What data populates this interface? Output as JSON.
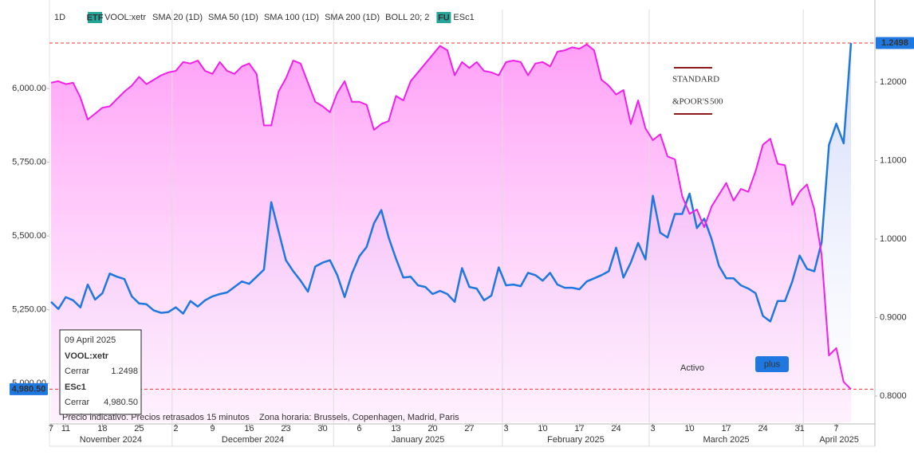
{
  "chart_data": {
    "type": "line",
    "interval": "1D",
    "indicators": [
      "SMA 20 (1D)",
      "SMA 50 (1D)",
      "SMA 100 (1D)",
      "SMA 200 (1D)",
      "BOLL 20; 2"
    ],
    "x": [
      "2024-11-07",
      "2024-11-08",
      "2024-11-11",
      "2024-11-12",
      "2024-11-13",
      "2024-11-14",
      "2024-11-15",
      "2024-11-18",
      "2024-11-19",
      "2024-11-20",
      "2024-11-21",
      "2024-11-22",
      "2024-11-25",
      "2024-11-26",
      "2024-11-27",
      "2024-11-28",
      "2024-11-29",
      "2024-12-02",
      "2024-12-03",
      "2024-12-04",
      "2024-12-05",
      "2024-12-06",
      "2024-12-09",
      "2024-12-10",
      "2024-12-11",
      "2024-12-12",
      "2024-12-13",
      "2024-12-16",
      "2024-12-17",
      "2024-12-18",
      "2024-12-19",
      "2024-12-20",
      "2024-12-23",
      "2024-12-24",
      "2024-12-25",
      "2024-12-26",
      "2024-12-27",
      "2024-12-30",
      "2024-12-31",
      "2025-01-01",
      "2025-01-02",
      "2025-01-03",
      "2025-01-06",
      "2025-01-07",
      "2025-01-08",
      "2025-01-09",
      "2025-01-10",
      "2025-01-13",
      "2025-01-14",
      "2025-01-15",
      "2025-01-16",
      "2025-01-17",
      "2025-01-20",
      "2025-01-21",
      "2025-01-22",
      "2025-01-23",
      "2025-01-24",
      "2025-01-27",
      "2025-01-28",
      "2025-01-29",
      "2025-01-30",
      "2025-01-31",
      "2025-02-03",
      "2025-02-04",
      "2025-02-05",
      "2025-02-06",
      "2025-02-07",
      "2025-02-10",
      "2025-02-11",
      "2025-02-12",
      "2025-02-13",
      "2025-02-14",
      "2025-02-17",
      "2025-02-18",
      "2025-02-19",
      "2025-02-20",
      "2025-02-21",
      "2025-02-24",
      "2025-02-25",
      "2025-02-26",
      "2025-02-27",
      "2025-02-28",
      "2025-03-03",
      "2025-03-04",
      "2025-03-05",
      "2025-03-06",
      "2025-03-07",
      "2025-03-10",
      "2025-03-11",
      "2025-03-12",
      "2025-03-13",
      "2025-03-14",
      "2025-03-17",
      "2025-03-18",
      "2025-03-19",
      "2025-03-20",
      "2025-03-21",
      "2025-03-24",
      "2025-03-25",
      "2025-03-26",
      "2025-03-27",
      "2025-03-28",
      "2025-03-31",
      "2025-04-01",
      "2025-04-02",
      "2025-04-03",
      "2025-04-04",
      "2025-04-07",
      "2025-04-08",
      "2025-04-09"
    ],
    "xticks": [
      {
        "value": "2024-11-07",
        "label": "7"
      },
      {
        "value": "2024-11-11",
        "label": "11"
      },
      {
        "value": "2024-11-18",
        "label": "18"
      },
      {
        "value": "2024-11-25",
        "label": "25"
      },
      {
        "value": "2024-12-02",
        "label": "2"
      },
      {
        "value": "2024-12-09",
        "label": "9"
      },
      {
        "value": "2024-12-16",
        "label": "16"
      },
      {
        "value": "2024-12-23",
        "label": "23"
      },
      {
        "value": "2024-12-30",
        "label": "30"
      },
      {
        "value": "2025-01-06",
        "label": "6"
      },
      {
        "value": "2025-01-13",
        "label": "13"
      },
      {
        "value": "2025-01-20",
        "label": "20"
      },
      {
        "value": "2025-01-27",
        "label": "27"
      },
      {
        "value": "2025-02-03",
        "label": "3"
      },
      {
        "value": "2025-02-10",
        "label": "10"
      },
      {
        "value": "2025-02-17",
        "label": "17"
      },
      {
        "value": "2025-02-24",
        "label": "24"
      },
      {
        "value": "2025-03-03",
        "label": "3"
      },
      {
        "value": "2025-03-10",
        "label": "10"
      },
      {
        "value": "2025-03-17",
        "label": "17"
      },
      {
        "value": "2025-03-24",
        "label": "24"
      },
      {
        "value": "2025-03-31",
        "label": "31"
      },
      {
        "value": "2025-04-07",
        "label": "7"
      }
    ],
    "month_labels": [
      "November 2024",
      "December 2024",
      "January 2025",
      "February 2025",
      "March 2025",
      "April 2025"
    ],
    "ylim": [
      4868,
      6268
    ],
    "yticks": [
      {
        "value": 6000,
        "label": "6,000.00"
      },
      {
        "value": 5750,
        "label": "5,750.00"
      },
      {
        "value": 5500,
        "label": "5,500.00"
      },
      {
        "value": 5250,
        "label": "5,250.00"
      },
      {
        "value": 5000,
        "label": "5,000.00"
      }
    ],
    "y2lim": [
      0.7665,
      1.2924
    ],
    "y2ticks": [
      {
        "value": 1.2,
        "label": "1.2000"
      },
      {
        "value": 1.1,
        "label": "1.1000"
      },
      {
        "value": 1.0,
        "label": "1.0000"
      },
      {
        "value": 0.9,
        "label": "0.9000"
      },
      {
        "value": 0.8,
        "label": "0.8000"
      }
    ],
    "grid": false,
    "series": [
      {
        "name": "VOOL:xetr",
        "badge": "ETF",
        "color": "#1f78e0",
        "axis": "y2",
        "last_label": "1.2498",
        "values": [
          0.92,
          0.911,
          0.926,
          0.922,
          0.913,
          0.942,
          0.923,
          0.931,
          0.956,
          0.952,
          0.949,
          0.927,
          0.918,
          0.917,
          0.909,
          0.906,
          0.907,
          0.913,
          0.905,
          0.921,
          0.914,
          0.922,
          0.927,
          0.93,
          0.932,
          0.939,
          0.946,
          0.943,
          0.952,
          0.961,
          1.047,
          1.01,
          0.973,
          0.959,
          0.947,
          0.933,
          0.965,
          0.97,
          0.973,
          0.954,
          0.926,
          0.956,
          0.978,
          0.99,
          1.02,
          1.037,
          1.002,
          0.975,
          0.951,
          0.952,
          0.941,
          0.939,
          0.93,
          0.934,
          0.93,
          0.92,
          0.963,
          0.939,
          0.937,
          0.922,
          0.928,
          0.964,
          0.941,
          0.942,
          0.94,
          0.957,
          0.954,
          0.947,
          0.957,
          0.942,
          0.938,
          0.938,
          0.936,
          0.946,
          0.95,
          0.954,
          0.959,
          0.989,
          0.951,
          0.97,
          0.995,
          0.974,
          1.055,
          1.008,
          1.002,
          1.032,
          1.032,
          1.058,
          1.014,
          1.026,
          1.0,
          0.966,
          0.95,
          0.95,
          0.941,
          0.937,
          0.931,
          0.902,
          0.895,
          0.921,
          0.921,
          0.946,
          0.979,
          0.962,
          0.959,
          0.996,
          1.12,
          1.147,
          1.122,
          1.2498
        ]
      },
      {
        "name": "ESc1",
        "badge": "FU",
        "color": "#f020e8",
        "axis": "y",
        "last_label": "4,980.50",
        "values": [
          6020,
          6025,
          6015,
          6020,
          5970,
          5895,
          5915,
          5935,
          5940,
          5965,
          5990,
          6010,
          6040,
          6015,
          6030,
          6045,
          6055,
          6060,
          6090,
          6085,
          6095,
          6060,
          6050,
          6090,
          6060,
          6050,
          6075,
          6085,
          6050,
          5875,
          5875,
          5990,
          6035,
          6095,
          6085,
          6020,
          5955,
          5940,
          5920,
          5985,
          6025,
          5955,
          5955,
          5945,
          5860,
          5880,
          5890,
          5975,
          5960,
          6025,
          6055,
          6085,
          6115,
          6145,
          6130,
          6045,
          6090,
          6070,
          6090,
          6060,
          6055,
          6045,
          6090,
          6095,
          6090,
          6045,
          6085,
          6090,
          6075,
          6125,
          6130,
          6140,
          6135,
          6150,
          6130,
          6030,
          6010,
          5980,
          5995,
          5880,
          5960,
          5865,
          5825,
          5845,
          5770,
          5760,
          5635,
          5575,
          5590,
          5530,
          5600,
          5640,
          5680,
          5620,
          5660,
          5650,
          5720,
          5810,
          5830,
          5745,
          5740,
          5605,
          5650,
          5675,
          5590,
          5435,
          5095,
          5120,
          5005,
          4980.5
        ]
      }
    ],
    "tooltip": {
      "date": "09 April 2025",
      "field": "Cerrar"
    },
    "note": "Precio indicativo. Precios retrasados 15 minutos    Zona horaria: Brussels, Copenhagen, Madrid, Paris",
    "logos": {
      "sp": [
        "STANDARD",
        "&POOR'S",
        "500"
      ],
      "activo": [
        "Activo",
        "plus"
      ]
    }
  }
}
